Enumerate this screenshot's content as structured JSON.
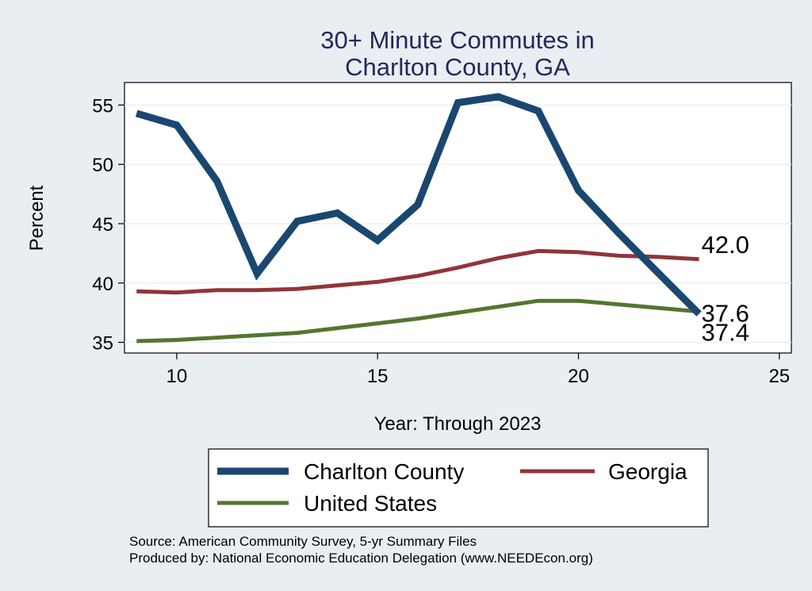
{
  "chart_data": {
    "type": "line",
    "title": [
      "30+ Minute Commutes in",
      "Charlton County, GA"
    ],
    "xlabel": "Year: Through 2023",
    "ylabel": "Percent",
    "xlim": [
      8.7,
      25.3
    ],
    "ylim": [
      34.1,
      56.9
    ],
    "xticks": [
      10,
      15,
      20,
      25
    ],
    "yticks": [
      35,
      40,
      45,
      50,
      55
    ],
    "grid": true,
    "legend_position": "bottom",
    "series": [
      {
        "name": "Charlton County",
        "color": "#1a476f",
        "x": [
          9,
          10,
          11,
          12,
          13,
          14,
          15,
          16,
          17,
          18,
          19,
          20,
          21,
          22,
          23
        ],
        "y": [
          54.3,
          53.3,
          48.6,
          40.8,
          45.2,
          45.9,
          43.6,
          46.6,
          55.2,
          55.7,
          54.5,
          47.8,
          44.2,
          40.8,
          37.4
        ],
        "end_label": "37.4"
      },
      {
        "name": "Georgia",
        "color": "#90353b",
        "x": [
          9,
          10,
          11,
          12,
          13,
          14,
          15,
          16,
          17,
          18,
          19,
          20,
          21,
          22,
          23
        ],
        "y": [
          39.3,
          39.2,
          39.4,
          39.4,
          39.5,
          39.8,
          40.1,
          40.6,
          41.3,
          42.1,
          42.7,
          42.6,
          42.3,
          42.2,
          42.0
        ],
        "end_label": "42.0"
      },
      {
        "name": "United States",
        "color": "#55752f",
        "x": [
          9,
          10,
          11,
          12,
          13,
          14,
          15,
          16,
          17,
          18,
          19,
          20,
          21,
          22,
          23
        ],
        "y": [
          35.1,
          35.2,
          35.4,
          35.6,
          35.8,
          36.2,
          36.6,
          37.0,
          37.5,
          38.0,
          38.5,
          38.5,
          38.2,
          37.9,
          37.6
        ],
        "end_label": "37.6"
      }
    ]
  },
  "footer": {
    "source": "Source: American Community Survey, 5-yr Summary Files",
    "producer": "Produced by: National Economic Education Delegation (www.NEEDEcon.org)"
  }
}
